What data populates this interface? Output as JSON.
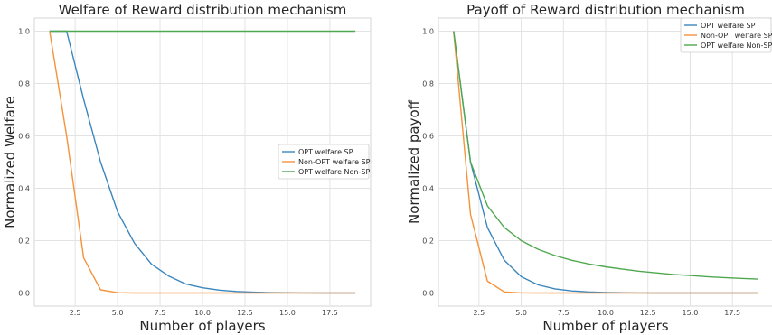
{
  "colors": {
    "background": "#ffffff",
    "grid": "#e3e3e3",
    "axes_edge": "#d6d6d6",
    "series": [
      "#3b86bd",
      "#f5923a",
      "#4fa84f"
    ]
  },
  "chart_data": [
    {
      "type": "line",
      "title": "Welfare of Reward distribution mechanism",
      "xlabel": "Number of players",
      "ylabel": "Normalized Welfare",
      "xlim": [
        0.1,
        19.9
      ],
      "ylim": [
        -0.05,
        1.05
      ],
      "xticks": [
        "2.5",
        "5.0",
        "7.5",
        "10.0",
        "12.5",
        "15.0",
        "17.5"
      ],
      "yticks": [
        "0.0",
        "0.2",
        "0.4",
        "0.6",
        "0.8",
        "1.0"
      ],
      "grid": true,
      "legend_position": "center-right",
      "x": [
        1,
        2,
        3,
        4,
        5,
        6,
        7,
        8,
        9,
        10,
        11,
        12,
        13,
        14,
        15,
        16,
        17,
        18,
        19
      ],
      "series": [
        {
          "name": "OPT welfare SP",
          "values": [
            1.0,
            1.0,
            0.74,
            0.5,
            0.31,
            0.19,
            0.11,
            0.065,
            0.035,
            0.02,
            0.011,
            0.006,
            0.003,
            0.0015,
            0.001,
            0.0005,
            0,
            0,
            0
          ]
        },
        {
          "name": "Non-OPT welfare SP",
          "values": [
            1.0,
            0.6,
            0.135,
            0.012,
            0.001,
            0,
            0,
            0,
            0,
            0,
            0,
            0,
            0,
            0,
            0,
            0,
            0,
            0,
            0
          ]
        },
        {
          "name": "OPT welfare Non-SP",
          "values": [
            1.0,
            1.0,
            1.0,
            1.0,
            1.0,
            1.0,
            1.0,
            1.0,
            1.0,
            1.0,
            1.0,
            1.0,
            1.0,
            1.0,
            1.0,
            1.0,
            1.0,
            1.0,
            1.0
          ]
        }
      ]
    },
    {
      "type": "line",
      "title": "Payoff of Reward distribution mechanism",
      "xlabel": "Number of players",
      "ylabel": "Normalized payoff",
      "xlim": [
        0.1,
        19.9
      ],
      "ylim": [
        -0.05,
        1.05
      ],
      "xticks": [
        "2.5",
        "5.0",
        "7.5",
        "10.0",
        "12.5",
        "15.0",
        "17.5"
      ],
      "yticks": [
        "0.0",
        "0.2",
        "0.4",
        "0.6",
        "0.8",
        "1.0"
      ],
      "grid": true,
      "legend_position": "top-right",
      "x": [
        1,
        2,
        3,
        4,
        5,
        6,
        7,
        8,
        9,
        10,
        11,
        12,
        13,
        14,
        15,
        16,
        17,
        18,
        19
      ],
      "series": [
        {
          "name": "OPT welfare SP",
          "values": [
            1.0,
            0.5,
            0.25,
            0.125,
            0.0625,
            0.031,
            0.016,
            0.008,
            0.004,
            0.002,
            0.001,
            0.0005,
            0,
            0,
            0,
            0,
            0,
            0,
            0
          ]
        },
        {
          "name": "Non-OPT welfare SP",
          "values": [
            1.0,
            0.3,
            0.045,
            0.004,
            0.0005,
            0,
            0,
            0,
            0,
            0,
            0,
            0,
            0,
            0,
            0,
            0,
            0,
            0,
            0
          ]
        },
        {
          "name": "OPT welfare Non-SP",
          "values": [
            1.0,
            0.5,
            0.333,
            0.25,
            0.2,
            0.167,
            0.143,
            0.125,
            0.111,
            0.1,
            0.091,
            0.083,
            0.077,
            0.071,
            0.067,
            0.0625,
            0.059,
            0.056,
            0.053
          ]
        }
      ]
    }
  ]
}
